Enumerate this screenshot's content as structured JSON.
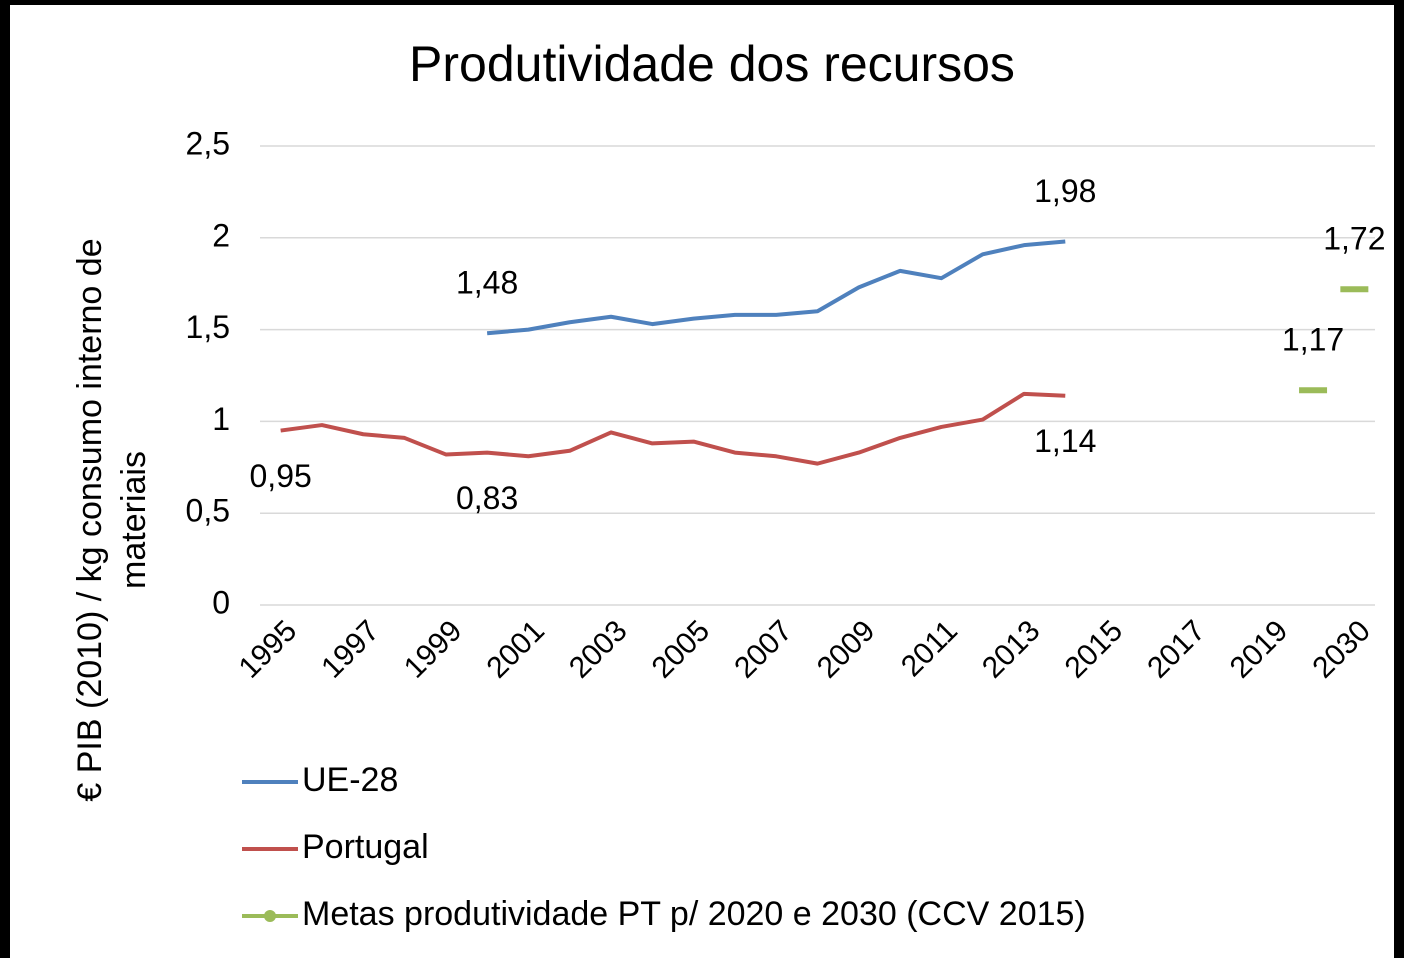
{
  "chart_data": {
    "type": "line",
    "title": "Produtividade dos recursos",
    "y_label": [
      "€ PIB (2010) / kg consumo interno de",
      "materiais"
    ],
    "categories": [
      "1995",
      null,
      "1997",
      null,
      "1999",
      null,
      "2001",
      null,
      "2003",
      null,
      "2005",
      null,
      "2007",
      null,
      "2009",
      null,
      "2011",
      null,
      "2013",
      null,
      "2015",
      null,
      "2017",
      null,
      "2019",
      null,
      "2030"
    ],
    "series": [
      {
        "name": "UE-28",
        "color": "#4f81bd",
        "marker": "none",
        "values": [
          null,
          null,
          null,
          null,
          null,
          1.48,
          1.5,
          1.54,
          1.57,
          1.53,
          1.56,
          1.58,
          1.58,
          1.6,
          1.73,
          1.82,
          1.78,
          1.91,
          1.96,
          1.98,
          null,
          null,
          null,
          null,
          null,
          null,
          null
        ],
        "value_labels": [
          null,
          null,
          null,
          null,
          null,
          "1,48",
          null,
          null,
          null,
          null,
          null,
          null,
          null,
          null,
          null,
          null,
          null,
          null,
          null,
          "1,98",
          null,
          null,
          null,
          null,
          null,
          null,
          null
        ]
      },
      {
        "name": "Portugal",
        "color": "#c0504d",
        "marker": "none",
        "values": [
          0.95,
          0.98,
          0.93,
          0.91,
          0.82,
          0.83,
          0.81,
          0.84,
          0.94,
          0.88,
          0.89,
          0.83,
          0.81,
          0.77,
          0.83,
          0.91,
          0.97,
          1.01,
          1.15,
          1.14,
          null,
          null,
          null,
          null,
          null,
          null,
          null
        ],
        "value_labels": [
          "0,95",
          null,
          null,
          null,
          null,
          "0,83",
          null,
          null,
          null,
          null,
          null,
          null,
          null,
          null,
          null,
          null,
          null,
          null,
          null,
          "1,14",
          null,
          null,
          null,
          null,
          null,
          null,
          null
        ]
      },
      {
        "name": "Metas produtividade PT p/ 2020 e 2030 (CCV 2015)",
        "color": "#9bbb59",
        "marker": "dash",
        "values": [
          null,
          null,
          null,
          null,
          null,
          null,
          null,
          null,
          null,
          null,
          null,
          null,
          null,
          null,
          null,
          null,
          null,
          null,
          null,
          null,
          null,
          null,
          null,
          null,
          null,
          1.17,
          1.72
        ],
        "value_labels": [
          null,
          null,
          null,
          null,
          null,
          null,
          null,
          null,
          null,
          null,
          null,
          null,
          null,
          null,
          null,
          null,
          null,
          null,
          null,
          null,
          null,
          null,
          null,
          null,
          null,
          "1,17",
          "1,72"
        ]
      }
    ],
    "ylim": [
      0,
      2.5
    ],
    "yticks": [
      0,
      {
        "value": 0.5,
        "label": "0,5"
      },
      1,
      {
        "value": 1.5,
        "label": "1,5"
      },
      2,
      {
        "value": 2.5,
        "label": "2,5"
      }
    ],
    "grid": true,
    "legend": "bottom"
  }
}
